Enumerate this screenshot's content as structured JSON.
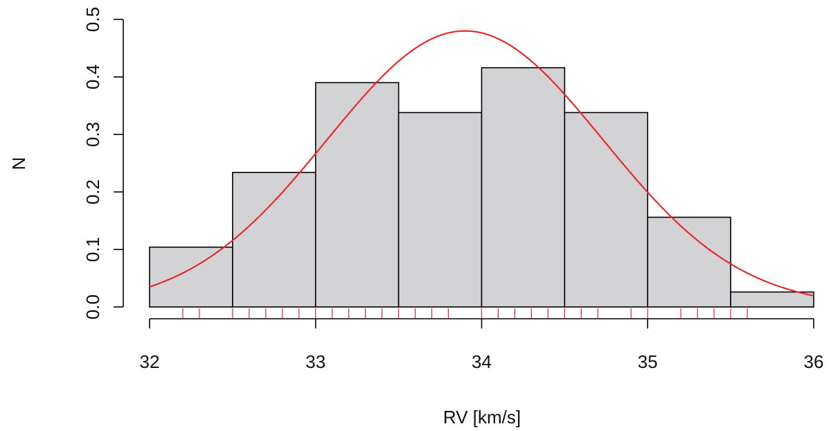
{
  "chart_data": {
    "type": "bar",
    "subtype": "histogram",
    "title": "",
    "xlabel": "RV [km/s]",
    "ylabel": "N",
    "xlim": [
      32,
      36
    ],
    "ylim": [
      0,
      0.5
    ],
    "x_ticks": [
      "32",
      "33",
      "34",
      "35",
      "36"
    ],
    "y_ticks": [
      "0.0",
      "0.1",
      "0.2",
      "0.3",
      "0.4",
      "0.5"
    ],
    "bins": [
      {
        "start": 32.0,
        "end": 32.5,
        "value": 0.104
      },
      {
        "start": 32.5,
        "end": 33.0,
        "value": 0.234
      },
      {
        "start": 33.0,
        "end": 33.5,
        "value": 0.39
      },
      {
        "start": 33.5,
        "end": 34.0,
        "value": 0.338
      },
      {
        "start": 34.0,
        "end": 34.5,
        "value": 0.416
      },
      {
        "start": 34.5,
        "end": 35.0,
        "value": 0.338
      },
      {
        "start": 35.0,
        "end": 35.5,
        "value": 0.156
      },
      {
        "start": 35.5,
        "end": 36.0,
        "value": 0.026
      }
    ],
    "bar_fill": "#d3d3d6",
    "bar_stroke": "#000000",
    "curve": {
      "type": "normal",
      "mean": 33.9,
      "sd": 0.83,
      "peak": 0.48,
      "color": "#e8282b"
    },
    "rug": {
      "color": "#e8282b",
      "values": [
        32.2,
        32.3,
        32.5,
        32.6,
        32.7,
        32.8,
        32.9,
        33.0,
        33.1,
        33.2,
        33.3,
        33.4,
        33.5,
        33.6,
        33.7,
        33.8,
        34.0,
        34.1,
        34.2,
        34.3,
        34.4,
        34.5,
        34.6,
        34.7,
        34.9,
        35.0,
        35.2,
        35.3,
        35.4,
        35.5,
        35.6
      ]
    },
    "grid": false,
    "legend": "none"
  }
}
